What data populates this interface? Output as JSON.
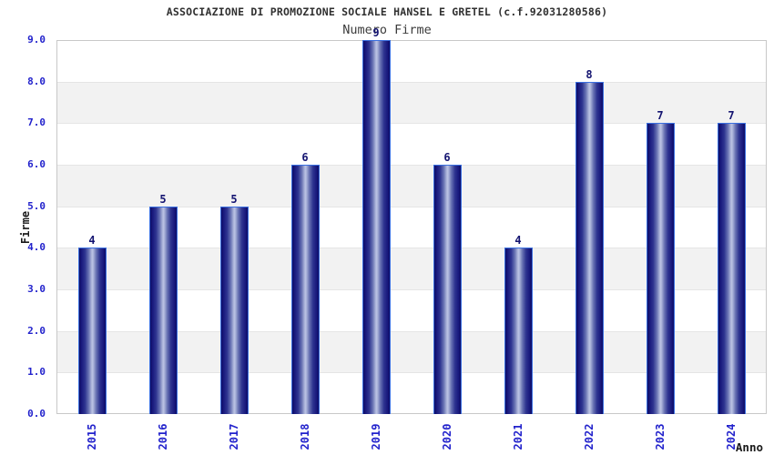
{
  "header": {
    "title": "ASSOCIAZIONE DI PROMOZIONE SOCIALE HANSEL E GRETEL (c.f.92031280586)",
    "subtitle": "Numero Firme"
  },
  "chart_data": {
    "type": "bar",
    "title": "ASSOCIAZIONE DI PROMOZIONE SOCIALE HANSEL E GRETEL (c.f.92031280586)",
    "subtitle": "Numero Firme",
    "categories": [
      "2015",
      "2016",
      "2017",
      "2018",
      "2019",
      "2020",
      "2021",
      "2022",
      "2023",
      "2024"
    ],
    "values": [
      4,
      5,
      5,
      6,
      9,
      6,
      4,
      8,
      7,
      7
    ],
    "xlabel": "Anno",
    "ylabel": "Firme",
    "ylim": [
      0,
      9
    ],
    "ytick_step": 1,
    "ytick_labels": [
      "0.0",
      "1.0",
      "2.0",
      "3.0",
      "4.0",
      "5.0",
      "6.0",
      "7.0",
      "8.0",
      "9.0"
    ],
    "grid": "alternating-horizontal-bands",
    "legend": "none",
    "bar_value_labels_shown": true,
    "colors": {
      "axis_text": "#2222cc",
      "value_label": "#131370",
      "bar_border": "#3a6fe0",
      "bar_dark": "#0e0e64",
      "bar_light": "#bcc4e4",
      "band_gray": "#f2f2f2",
      "gridline": "#e5e5e5",
      "plot_border": "#c8c8c8",
      "title_text": "#303030",
      "subtitle_text": "#3c3c3c",
      "axis_title_text": "#1a1a1a"
    }
  }
}
